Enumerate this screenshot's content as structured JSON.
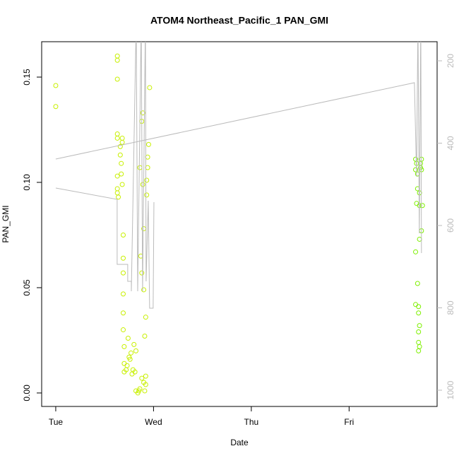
{
  "chart_data": {
    "type": "scatter",
    "title": "ATOM4 Northeast_Pacific_1 PAN_GMI",
    "x_label": "Date",
    "y_label": "PAN_GMI",
    "xlim": [
      -0.144,
      3.9
    ],
    "xticks": [
      {
        "value": 0,
        "label": "Tue"
      },
      {
        "value": 1,
        "label": "Wed"
      },
      {
        "value": 2,
        "label": "Thu"
      },
      {
        "value": 3,
        "label": "Fri"
      }
    ],
    "ylim": [
      -0.0064,
      0.1668
    ],
    "yticks": [
      {
        "value": 0,
        "label": "0.00"
      },
      0.05,
      {
        "value": 0.1,
        "label": "0.10"
      },
      0.15
    ],
    "y2lim": [
      1039.5,
      153.6
    ],
    "y2ticks": [
      200,
      400,
      600,
      800,
      1000
    ],
    "y2color": "#bbbbbb",
    "series": [
      {
        "color": "#c8f000",
        "x": [
          0,
          0,
          0.63,
          0.63,
          0.63,
          0.63,
          0.63,
          0.63,
          0.63,
          0.63,
          0.64,
          0.66,
          0.66,
          0.67,
          0.67,
          0.68,
          0.68,
          0.68,
          0.69,
          0.69,
          0.69,
          0.69,
          0.69,
          0.69,
          0.7,
          0.7,
          0.7,
          0.72,
          0.73,
          0.74,
          0.75,
          0.76,
          0.77,
          0.78,
          0.79,
          0.8,
          0.81,
          0.82,
          0.82,
          0.84,
          0.85,
          0.86,
          0.86,
          0.87,
          0.88,
          0.88,
          0.89,
          0.89,
          0.9,
          0.9,
          0.91,
          0.91,
          0.92,
          0.92,
          0.93,
          0.93,
          0.94,
          0.94,
          0.95,
          0.96,
          0.88,
          0.9,
          0.92
        ],
        "values": [
          0.146,
          0.136,
          0.16,
          0.158,
          0.149,
          0.123,
          0.121,
          0.103,
          0.097,
          0.095,
          0.093,
          0.117,
          0.113,
          0.109,
          0.104,
          0.099,
          0.121,
          0.119,
          0.075,
          0.064,
          0.057,
          0.047,
          0.038,
          0.03,
          0.022,
          0.014,
          0.01,
          0.011,
          0.013,
          0.026,
          0.017,
          0.016,
          0.019,
          0.009,
          0.011,
          0.023,
          0.01,
          0.02,
          0.001,
          0.0,
          0.001,
          0.002,
          0.107,
          0.065,
          0.057,
          0.129,
          0.133,
          0.099,
          0.078,
          0.049,
          0.027,
          0.001,
          0.004,
          0.036,
          0.101,
          0.094,
          0.112,
          0.107,
          0.118,
          0.145,
          0.007,
          0.005,
          0.008
        ]
      },
      {
        "color": "#7ef000",
        "x": [
          3.68,
          3.68,
          3.68,
          3.68,
          3.69,
          3.69,
          3.7,
          3.7,
          3.7,
          3.71,
          3.71,
          3.71,
          3.71,
          3.71,
          3.72,
          3.72,
          3.72,
          3.73,
          3.73,
          3.74,
          3.74,
          3.75,
          3.72,
          3.72,
          3.74
        ],
        "values": [
          0.111,
          0.106,
          0.067,
          0.042,
          0.09,
          0.109,
          0.104,
          0.097,
          0.052,
          0.041,
          0.038,
          0.029,
          0.024,
          0.02,
          0.032,
          0.089,
          0.073,
          0.107,
          0.109,
          0.111,
          0.077,
          0.089,
          0.095,
          0.022,
          0.106
        ]
      },
      {
        "type": "line",
        "axis": "y2",
        "color": "#bbbbbb",
        "x": [
          0,
          0.628,
          0.628,
          0.736,
          0.736,
          0.773,
          0.773,
          0.823,
          0.838,
          0.874,
          0.888,
          0.917,
          0.924,
          0.946,
          0.96,
          0.996,
          1.004,
          null,
          0,
          3.668,
          3.69,
          3.704,
          3.718,
          3.733,
          3.74
        ],
        "values": [
          509,
          536.5,
          694.4,
          694.4,
          735.6,
          735.6,
          759.7,
          100,
          759.7,
          100,
          759.7,
          100,
          735.6,
          539.9,
          800.9,
          800.9,
          543.3,
          null,
          438.6,
          253.2,
          481.5,
          100,
          618.9,
          100,
          667
        ]
      }
    ]
  }
}
